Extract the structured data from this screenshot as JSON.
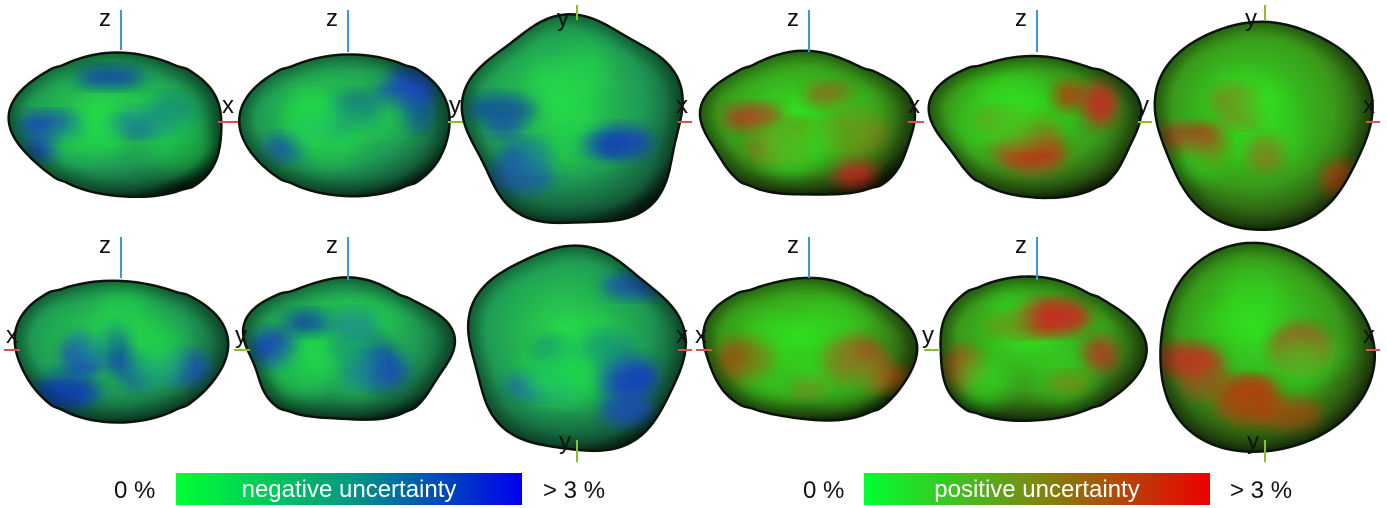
{
  "colorbars": {
    "negative": {
      "min_label": "0 %",
      "label": "negative uncertainty",
      "max_label": "> 3 %",
      "colors": [
        "#00ff33",
        "#0000ee"
      ]
    },
    "positive": {
      "min_label": "0 %",
      "label": "positive uncertainty",
      "max_label": "> 3 %",
      "colors": [
        "#00ff33",
        "#ee0000"
      ]
    }
  },
  "views": [
    {
      "name": "neg-top-xz",
      "set": "negative",
      "axes": {
        "up": "z",
        "right": "x"
      }
    },
    {
      "name": "neg-top-yz",
      "set": "negative",
      "axes": {
        "up": "z",
        "right": "y"
      }
    },
    {
      "name": "neg-top-xy",
      "set": "negative",
      "axes": {
        "up": "y",
        "right": "x"
      }
    },
    {
      "name": "pos-top-xz",
      "set": "positive",
      "axes": {
        "up": "z",
        "right": "x"
      }
    },
    {
      "name": "pos-top-yz",
      "set": "positive",
      "axes": {
        "up": "z",
        "right": "y"
      }
    },
    {
      "name": "pos-top-xy",
      "set": "positive",
      "axes": {
        "up": "y",
        "right": "x"
      }
    },
    {
      "name": "neg-bot-xz",
      "set": "negative",
      "axes": {
        "up": "z",
        "left": "x"
      }
    },
    {
      "name": "neg-bot-yz",
      "set": "negative",
      "axes": {
        "up": "z",
        "left": "y"
      }
    },
    {
      "name": "neg-bot-xy",
      "set": "negative",
      "axes": {
        "down": "y",
        "right": "x"
      }
    },
    {
      "name": "pos-bot-xz",
      "set": "positive",
      "axes": {
        "up": "z",
        "left": "x"
      }
    },
    {
      "name": "pos-bot-yz",
      "set": "positive",
      "axes": {
        "up": "z",
        "left": "y"
      }
    },
    {
      "name": "pos-bot-xy",
      "set": "positive",
      "axes": {
        "down": "y",
        "right": "x"
      }
    }
  ],
  "axis_colors": {
    "x": "#e05050",
    "y": "#8bbf2e",
    "z": "#3a9ad9"
  }
}
